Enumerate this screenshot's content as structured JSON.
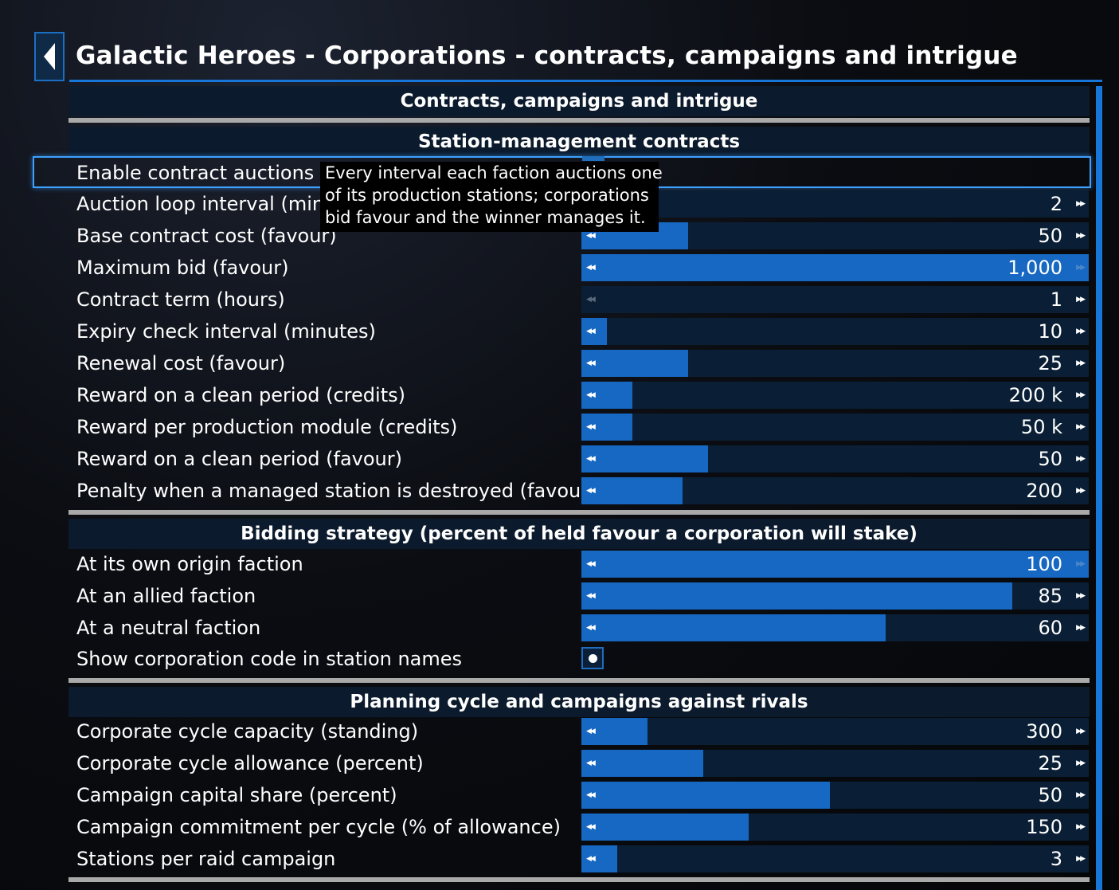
{
  "header": {
    "title": "Galactic Heroes - Corporations - contracts, campaigns and intrigue",
    "back_icon": "chevron-left-icon"
  },
  "sections": {
    "main": "Contracts, campaigns and intrigue",
    "station": "Station-management contracts",
    "bidding": "Bidding strategy (percent of held favour a corporation will stake)",
    "planning": "Planning cycle and campaigns against rivals"
  },
  "tooltip": {
    "line1": "Every interval each faction auctions one",
    "line2": "of its production stations; corporations",
    "line3": "bid favour and the winner manages it."
  },
  "settings": {
    "enable_auctions": {
      "label": "Enable contract auctions",
      "checked": true
    },
    "auction_interval": {
      "label": "Auction loop interval (minutes)",
      "value": "2",
      "fill": 0
    },
    "base_cost": {
      "label": "Base contract cost (favour)",
      "value": "50",
      "fill": 0.21
    },
    "max_bid": {
      "label": "Maximum bid (favour)",
      "value": "1,000",
      "fill": 1.0
    },
    "contract_term": {
      "label": "Contract term (hours)",
      "value": "1",
      "fill": 0
    },
    "expiry_interval": {
      "label": "Expiry check interval (minutes)",
      "value": "10",
      "fill": 0.05
    },
    "renewal_cost": {
      "label": "Renewal cost (favour)",
      "value": "25",
      "fill": 0.21
    },
    "reward_clean_credits": {
      "label": "Reward on a clean period (credits)",
      "value": "200 k",
      "fill": 0.1
    },
    "reward_module": {
      "label": "Reward per production module (credits)",
      "value": "50 k",
      "fill": 0.1
    },
    "reward_clean_favour": {
      "label": "Reward on a clean period (favour)",
      "value": "50",
      "fill": 0.25
    },
    "penalty_destroyed": {
      "label": "Penalty when a managed station is destroyed (favour)",
      "value": "200",
      "fill": 0.2
    },
    "bid_origin": {
      "label": "At its own origin faction",
      "value": "100",
      "fill": 1.0
    },
    "bid_allied": {
      "label": "At an allied faction",
      "value": "85",
      "fill": 0.85
    },
    "bid_neutral": {
      "label": "At a neutral faction",
      "value": "60",
      "fill": 0.6
    },
    "show_code": {
      "label": "Show corporation code in station names",
      "checked": true
    },
    "cycle_capacity": {
      "label": "Corporate cycle capacity (standing)",
      "value": "300",
      "fill": 0.13
    },
    "cycle_allowance": {
      "label": "Corporate cycle allowance (percent)",
      "value": "25",
      "fill": 0.24
    },
    "capital_share": {
      "label": "Campaign capital share (percent)",
      "value": "50",
      "fill": 0.49
    },
    "commitment": {
      "label": "Campaign commitment per cycle (% of allowance)",
      "value": "150",
      "fill": 0.33
    },
    "stations_raid": {
      "label": "Stations per raid campaign",
      "value": "3",
      "fill": 0.07
    }
  }
}
